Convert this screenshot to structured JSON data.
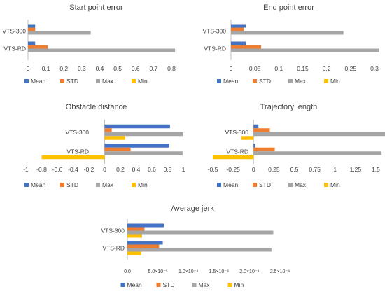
{
  "colors": {
    "mean": "#4472C4",
    "std": "#ED7D31",
    "max": "#A5A5A5",
    "min": "#FFC000",
    "axis": "#BFBFBF",
    "text": "#404040"
  },
  "legend_labels": [
    "Mean",
    "STD",
    "Max",
    "Min"
  ],
  "chart_data": [
    {
      "type": "bar",
      "orientation": "horizontal",
      "title": "Start point error",
      "categories": [
        "VTS-300",
        "VTS-RD"
      ],
      "series": [
        {
          "name": "Mean",
          "values": [
            0.04,
            0.04
          ]
        },
        {
          "name": "STD",
          "values": [
            0.04,
            0.11
          ]
        },
        {
          "name": "Max",
          "values": [
            0.35,
            0.82
          ]
        },
        {
          "name": "Min",
          "values": [
            0,
            0
          ]
        }
      ],
      "xlim": [
        0,
        0.8
      ],
      "xticks": [
        0,
        0.1,
        0.2,
        0.3,
        0.4,
        0.5,
        0.6,
        0.7,
        0.8
      ],
      "xtick_labels": [
        "0",
        "0.1",
        "0.2",
        "0.3",
        "0.4",
        "0.5",
        "0.6",
        "0.7",
        "0.8"
      ],
      "legend": "bottom"
    },
    {
      "type": "bar",
      "orientation": "horizontal",
      "title": "End point error",
      "categories": [
        "VTS-300",
        "VTS-RD"
      ],
      "series": [
        {
          "name": "Mean",
          "values": [
            0.031,
            0.031
          ]
        },
        {
          "name": "STD",
          "values": [
            0.027,
            0.063
          ]
        },
        {
          "name": "Max",
          "values": [
            0.235,
            0.31
          ]
        },
        {
          "name": "Min",
          "values": [
            0,
            0
          ]
        }
      ],
      "xlim": [
        0,
        0.3
      ],
      "xticks": [
        0,
        0.05,
        0.1,
        0.15,
        0.2,
        0.25,
        0.3
      ],
      "xtick_labels": [
        "0",
        "0.05",
        "0.1",
        "0.15",
        "0.2",
        "0.25",
        "0.3"
      ],
      "legend": "bottom"
    },
    {
      "type": "bar",
      "orientation": "horizontal",
      "title": "Obstacle distance",
      "categories": [
        "VTS-300",
        "VTS-RD"
      ],
      "series": [
        {
          "name": "Mean",
          "values": [
            0.83,
            0.82
          ]
        },
        {
          "name": "STD",
          "values": [
            0.09,
            0.33
          ]
        },
        {
          "name": "Max",
          "values": [
            1.0,
            0.99
          ]
        },
        {
          "name": "Min",
          "values": [
            0.26,
            -0.8
          ]
        }
      ],
      "xlim": [
        -1,
        1
      ],
      "xticks": [
        -1,
        -0.8,
        -0.6,
        -0.4,
        -0.2,
        0,
        0.2,
        0.4,
        0.6,
        0.8,
        1
      ],
      "xtick_labels": [
        "-1",
        "-0.8",
        "-0.6",
        "-0.4",
        "-0.2",
        "0",
        "0.2",
        "0.4",
        "0.6",
        "0.8",
        "1"
      ],
      "legend": "bottom"
    },
    {
      "type": "bar",
      "orientation": "horizontal",
      "title": "Trajectory length",
      "categories": [
        "VTS-300",
        "VTS-RD"
      ],
      "series": [
        {
          "name": "Mean",
          "values": [
            0.06,
            0.02
          ]
        },
        {
          "name": "STD",
          "values": [
            0.2,
            0.26
          ]
        },
        {
          "name": "Max",
          "values": [
            1.65,
            1.57
          ]
        },
        {
          "name": "Min",
          "values": [
            -0.15,
            -0.5
          ]
        }
      ],
      "xlim": [
        -0.5,
        1.5
      ],
      "xticks": [
        -0.5,
        -0.25,
        0,
        0.25,
        0.5,
        0.75,
        1,
        1.25,
        1.5
      ],
      "xtick_labels": [
        "-0.5",
        "-0.25",
        "0",
        "0.25",
        "0.5",
        "0.75",
        "1",
        "1.25",
        "1.5"
      ],
      "legend": "bottom"
    },
    {
      "type": "bar",
      "orientation": "horizontal",
      "title": "Average jerk",
      "categories": [
        "VTS-300",
        "VTS-RD"
      ],
      "series": [
        {
          "name": "Mean",
          "values": [
            6e-05,
            5.8e-05
          ]
        },
        {
          "name": "STD",
          "values": [
            2.8e-05,
            5.2e-05
          ]
        },
        {
          "name": "Max",
          "values": [
            0.000239,
            0.000236
          ]
        },
        {
          "name": "Min",
          "values": [
            2.4e-05,
            2.3e-05
          ]
        }
      ],
      "xlim": [
        0,
        0.00025
      ],
      "xticks": [
        0,
        5e-05,
        0.0001,
        0.00015,
        0.0002,
        0.00025
      ],
      "xtick_labels": [
        "0.0",
        "5.0×10⁻⁵",
        "1.0×10⁻⁴",
        "1.5×10⁻⁴",
        "2.0×10⁻⁴",
        "2.5×10⁻⁴"
      ],
      "legend": "bottom"
    }
  ]
}
